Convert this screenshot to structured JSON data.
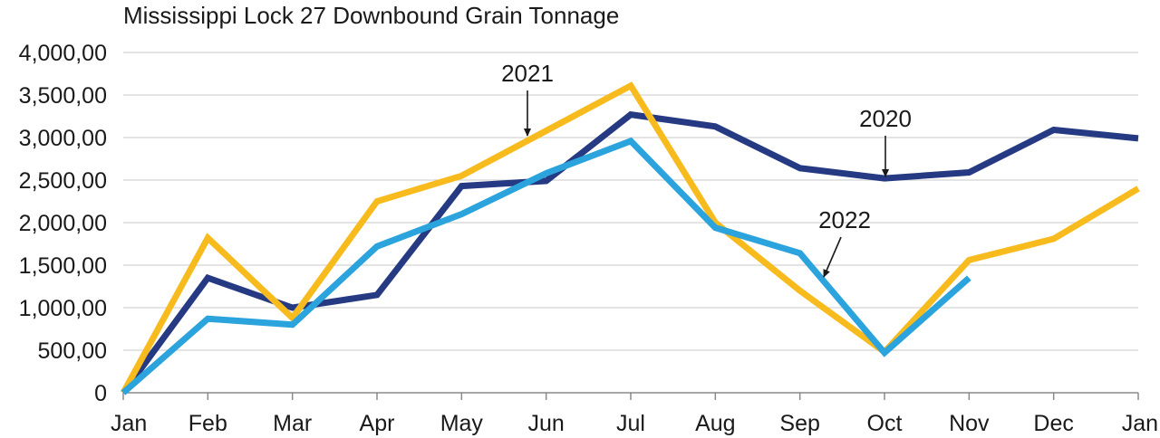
{
  "chart_data": {
    "type": "line",
    "title": "Mississippi Lock 27 Downbound Grain Tonnage",
    "xlabel": "",
    "ylabel": "",
    "categories": [
      "Jan",
      "Feb",
      "Mar",
      "Apr",
      "May",
      "Jun",
      "Jul",
      "Aug",
      "Sep",
      "Oct",
      "Nov",
      "Dec",
      "Jan"
    ],
    "y_ticks": [
      "0",
      "500,00",
      "1,000,00",
      "1,500,00",
      "2,000,00",
      "2,500,00",
      "3,000,00",
      "3,500,00",
      "4,000,00"
    ],
    "ylim": [
      0,
      4000
    ],
    "grid": "horizontal",
    "legend": "none",
    "series": [
      {
        "name": "2020",
        "color": "#253a83",
        "values": [
          0,
          1350,
          1000,
          1150,
          2430,
          2490,
          3270,
          3130,
          2640,
          2520,
          2590,
          3090,
          2990
        ]
      },
      {
        "name": "2021",
        "color": "#f7bb1e",
        "values": [
          0,
          1820,
          880,
          2250,
          2550,
          3080,
          3610,
          2000,
          1200,
          480,
          1560,
          1810,
          2400
        ]
      },
      {
        "name": "2022",
        "color": "#2ba3dc",
        "values": [
          0,
          870,
          800,
          1720,
          2100,
          2580,
          2960,
          1940,
          1640,
          470,
          1350,
          null,
          null
        ]
      }
    ],
    "annotations": [
      {
        "text": "2021",
        "series": "2021"
      },
      {
        "text": "2020",
        "series": "2020"
      },
      {
        "text": "2022",
        "series": "2022"
      }
    ]
  }
}
